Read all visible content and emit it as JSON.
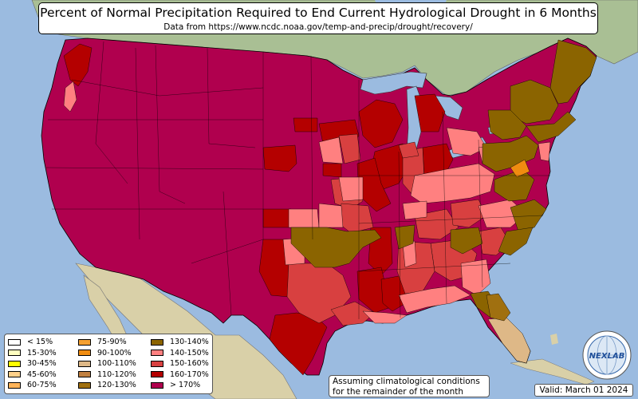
{
  "title": "Percent of Normal Precipitation Required to End Current Hydrological Drought in 6 Months",
  "subtitle": "Data from https://www.ncdc.noaa.gov/temp-and-precip/drought/recovery/",
  "legend": [
    {
      "label": "< 15%",
      "color": "#ffffff"
    },
    {
      "label": "15-30%",
      "color": "#ffffc0"
    },
    {
      "label": "30-45%",
      "color": "#ffff00"
    },
    {
      "label": "45-60%",
      "color": "#ffd08a"
    },
    {
      "label": "60-75%",
      "color": "#ffb45a"
    },
    {
      "label": "75-90%",
      "color": "#f5a030"
    },
    {
      "label": "90-100%",
      "color": "#f08c10"
    },
    {
      "label": "100-110%",
      "color": "#deb887"
    },
    {
      "label": "110-120%",
      "color": "#c08040"
    },
    {
      "label": "120-130%",
      "color": "#a07010"
    },
    {
      "label": "130-140%",
      "color": "#8b6400"
    },
    {
      "label": "140-150%",
      "color": "#ff8080"
    },
    {
      "label": "150-160%",
      "color": "#d84040"
    },
    {
      "label": "160-170%",
      "color": "#b40000"
    },
    {
      "label": "> 170%",
      "color": "#b0004e"
    }
  ],
  "note": {
    "line1": "Assuming climatological conditions",
    "line2": "for the remainder of the month"
  },
  "valid": "Valid: March 01 2024",
  "logo": {
    "text": "NEXLAB",
    "icon": "nexlab-globe-logo"
  },
  "colors": {
    "ocean": "#9bbbe0",
    "land": "#d7cfaa",
    "canada": "#9bb58c",
    "magenta": "#b0004e",
    "dark_red": "#b40000",
    "red": "#d84040",
    "salmon": "#ff8080",
    "brown": "#8b6400",
    "tan": "#deb887",
    "orange": "#f08c10"
  }
}
